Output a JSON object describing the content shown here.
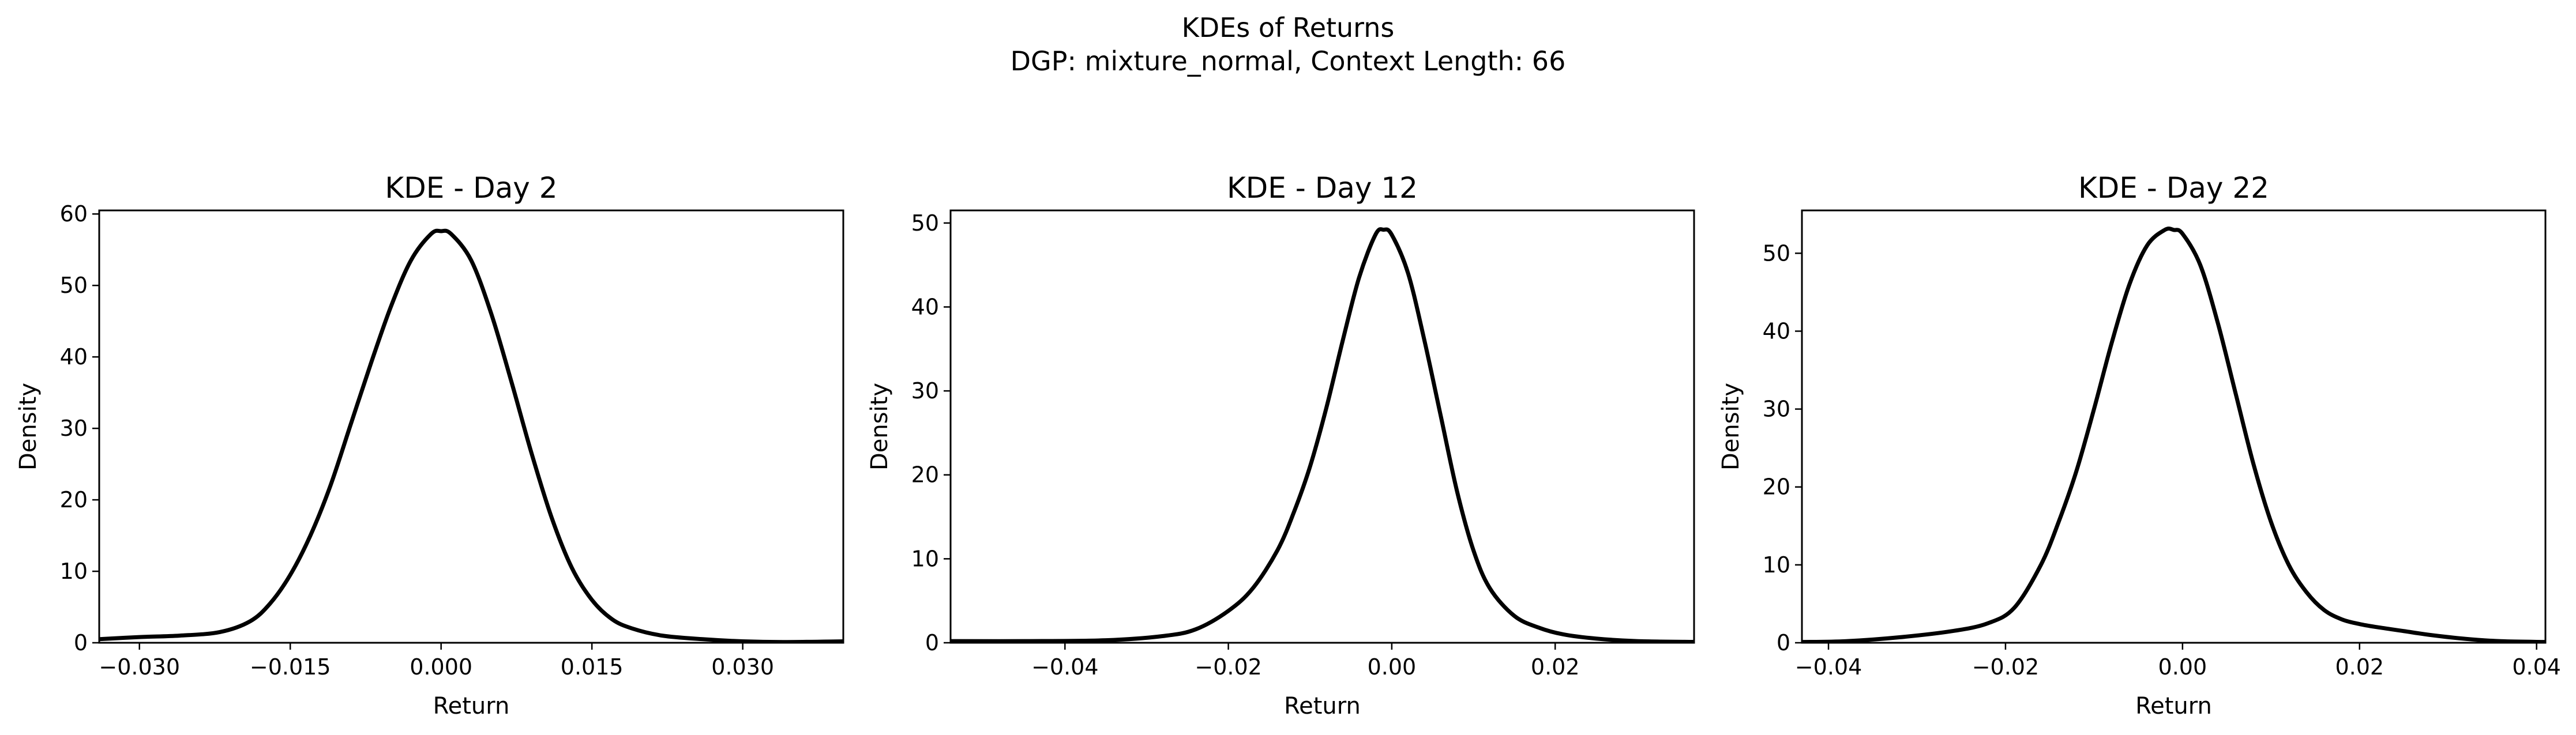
{
  "figure": {
    "title_line1": "KDEs of Returns",
    "title_line2": "DGP: mixture_normal, Context Length: 66"
  },
  "chart_data": [
    {
      "type": "line",
      "title": "KDE - Day 2",
      "xlabel": "Return",
      "ylabel": "Density",
      "xlim": [
        -0.034,
        0.04
      ],
      "ylim": [
        0,
        60.5
      ],
      "xticks": [
        -0.03,
        -0.015,
        0.0,
        0.015,
        0.03
      ],
      "xtick_labels": [
        "−0.030",
        "−0.015",
        "0.000",
        "0.015",
        "0.030"
      ],
      "yticks": [
        0,
        10,
        20,
        30,
        40,
        50,
        60
      ],
      "ytick_labels": [
        "0",
        "10",
        "20",
        "30",
        "40",
        "50",
        "60"
      ],
      "line_color": "#000000",
      "grid": false,
      "series": [
        {
          "x": [
            -0.034,
            -0.03,
            -0.026,
            -0.022,
            -0.019,
            -0.017,
            -0.015,
            -0.013,
            -0.011,
            -0.009,
            -0.007,
            -0.005,
            -0.003,
            -0.001,
            0.0,
            0.001,
            0.003,
            0.005,
            0.007,
            0.009,
            0.011,
            0.013,
            0.015,
            0.017,
            0.019,
            0.022,
            0.026,
            0.03,
            0.034,
            0.04
          ],
          "y": [
            0.5,
            0.8,
            1.0,
            1.5,
            3.0,
            5.5,
            9.5,
            15.0,
            22.0,
            30.5,
            39.0,
            47.0,
            53.5,
            57.2,
            57.6,
            57.2,
            53.5,
            46.0,
            36.5,
            26.5,
            17.5,
            10.5,
            6.0,
            3.3,
            2.0,
            1.0,
            0.5,
            0.2,
            0.1,
            0.2
          ]
        }
      ]
    },
    {
      "type": "line",
      "title": "KDE - Day 12",
      "xlabel": "Return",
      "ylabel": "Density",
      "xlim": [
        -0.054,
        0.037
      ],
      "ylim": [
        0,
        51.5
      ],
      "xticks": [
        -0.04,
        -0.02,
        0.0,
        0.02
      ],
      "xtick_labels": [
        "−0.04",
        "−0.02",
        "0.00",
        "0.02"
      ],
      "yticks": [
        0,
        10,
        20,
        30,
        40,
        50
      ],
      "ytick_labels": [
        "0",
        "10",
        "20",
        "30",
        "40",
        "50"
      ],
      "line_color": "#000000",
      "grid": false,
      "series": [
        {
          "x": [
            -0.054,
            -0.045,
            -0.035,
            -0.028,
            -0.024,
            -0.02,
            -0.017,
            -0.014,
            -0.012,
            -0.01,
            -0.008,
            -0.006,
            -0.004,
            -0.002,
            -0.001,
            0.0,
            0.002,
            0.004,
            0.006,
            0.008,
            0.01,
            0.012,
            0.015,
            0.018,
            0.021,
            0.025,
            0.03,
            0.037
          ],
          "y": [
            0.2,
            0.2,
            0.3,
            0.8,
            1.6,
            3.8,
            6.5,
            11.0,
            15.5,
            21.0,
            28.0,
            36.0,
            43.5,
            48.6,
            49.2,
            48.6,
            44.0,
            36.0,
            27.0,
            18.0,
            11.0,
            6.5,
            3.2,
            1.8,
            1.0,
            0.5,
            0.2,
            0.1
          ]
        }
      ]
    },
    {
      "type": "line",
      "title": "KDE - Day 22",
      "xlabel": "Return",
      "ylabel": "Density",
      "xlim": [
        -0.043,
        0.041
      ],
      "ylim": [
        0,
        55.5
      ],
      "xticks": [
        -0.04,
        -0.02,
        0.0,
        0.02,
        0.04
      ],
      "xtick_labels": [
        "−0.04",
        "−0.02",
        "0.00",
        "0.02",
        "0.04"
      ],
      "yticks": [
        0,
        10,
        20,
        30,
        40,
        50
      ],
      "ytick_labels": [
        "0",
        "10",
        "20",
        "30",
        "40",
        "50"
      ],
      "line_color": "#000000",
      "grid": false,
      "series": [
        {
          "x": [
            -0.043,
            -0.038,
            -0.032,
            -0.026,
            -0.022,
            -0.019,
            -0.016,
            -0.014,
            -0.012,
            -0.01,
            -0.008,
            -0.006,
            -0.004,
            -0.002,
            -0.001,
            0.0,
            0.002,
            0.004,
            0.006,
            0.008,
            0.01,
            0.012,
            0.014,
            0.016,
            0.018,
            0.02,
            0.022,
            0.025,
            0.028,
            0.032,
            0.036,
            0.041
          ],
          "y": [
            0.1,
            0.2,
            0.7,
            1.5,
            2.5,
            4.5,
            10.0,
            15.5,
            22.0,
            30.0,
            38.5,
            46.0,
            51.0,
            53.0,
            53.0,
            52.5,
            48.5,
            41.0,
            32.0,
            23.0,
            15.5,
            10.0,
            6.5,
            4.2,
            3.0,
            2.4,
            2.0,
            1.5,
            1.0,
            0.5,
            0.2,
            0.1
          ]
        }
      ]
    }
  ]
}
